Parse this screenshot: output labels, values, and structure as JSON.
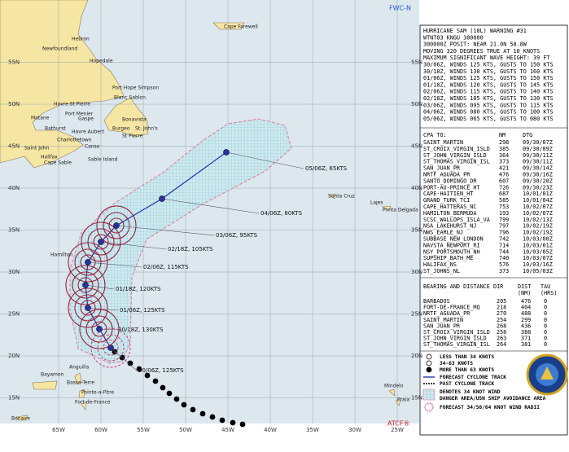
{
  "map": {
    "source_top": "FWC-N",
    "source_bottom": "ATCF®",
    "lat_labels": [
      "55N",
      "50N",
      "45N",
      "40N",
      "35N",
      "30N",
      "25N",
      "20N",
      "15N"
    ],
    "lon_labels": [
      "65W",
      "60W",
      "55W",
      "50W",
      "45W",
      "40W",
      "35W",
      "30W",
      "25W"
    ],
    "places": [
      "Cape Farewell",
      "Hebron",
      "Newfoundland",
      "Hopedale",
      "Port Hope Simpson",
      "Blanc Sablon",
      "Havre St Pierre",
      "Matane",
      "Port Menier",
      "Gaspe",
      "Bathurst",
      "Havre Aubert",
      "Charlottetown",
      "Burgeo",
      "Bonavista",
      "St. John's",
      "St Pierre",
      "Saint John",
      "Halifax",
      "Canso",
      "Cape Sable",
      "Sable Island",
      "Santa Cruz",
      "Lajes",
      "Ponta Delgada",
      "Hamilton",
      "Anguilla",
      "Bayamon",
      "Basse-Terre",
      "Pointe-a-Pitre",
      "Fort-de-France",
      "Bonaire",
      "Mindelo",
      "Praia"
    ],
    "track": [
      {
        "label": "30/06Z, 125KTS"
      },
      {
        "label": "30/18Z, 130KTS"
      },
      {
        "label": "01/06Z, 125KTS"
      },
      {
        "label": "01/18Z, 120KTS"
      },
      {
        "label": "02/06Z, 115KTS"
      },
      {
        "label": "02/18Z, 105KTS"
      },
      {
        "label": "03/06Z, 95KTS"
      },
      {
        "label": "04/06Z, 80KTS"
      },
      {
        "label": "05/06Z, 65KTS"
      }
    ]
  },
  "panel": {
    "header": [
      "HURRICANE SAM (18L) WARNING #31",
      "WTNT03 KNGU 300000",
      "300000Z POSIT: NEAR 21.0N 58.8W",
      "MOVING 320 DEGREES TRUE AT 10 KNOTS",
      "MAXIMUM SIGNIFICANT WAVE HEIGHT: 39 FT",
      "30/06Z, WINDS 125 KTS, GUSTS TO 150 KTS",
      "30/18Z, WINDS 130 KTS, GUSTS TO 160 KTS",
      "01/06Z, WINDS 125 KTS, GUSTS TO 150 KTS",
      "01/18Z, WINDS 120 KTS, GUSTS TO 145 KTS",
      "02/06Z, WINDS 115 KTS, GUSTS TO 140 KTS",
      "02/18Z, WINDS 105 KTS, GUSTS TO 130 KTS",
      "03/06Z, WINDS 095 KTS, GUSTS TO 115 KTS",
      "04/06Z, WINDS 080 KTS, GUSTS TO 100 KTS",
      "05/06Z, WINDS 065 KTS, GUSTS TO 080 KTS"
    ],
    "cpa": {
      "columns": [
        "CPA TO:",
        "NM",
        "DTG"
      ],
      "rows": [
        [
          "SAINT_MARTIN",
          "298",
          "09/30/07Z"
        ],
        [
          "ST_CROIX_VIRGIN_ISLD",
          "385",
          "09/30/09Z"
        ],
        [
          "ST_JOHN_VIRGIN_ISLD",
          "364",
          "09/30/11Z"
        ],
        [
          "ST_THOMAS_VIRGIN_ISL",
          "373",
          "09/30/11Z"
        ],
        [
          "SAN_JUAN_PR",
          "421",
          "09/30/14Z"
        ],
        [
          "NRTF_AGUADA_PR",
          "476",
          "09/30/16Z"
        ],
        [
          "SANTO_DOMINGO_DR",
          "607",
          "09/30/20Z"
        ],
        [
          "PORT-AU-PRINCE_HT",
          "726",
          "09/30/23Z"
        ],
        [
          "CAPE-HAITIEN_HT",
          "687",
          "10/01/01Z"
        ],
        [
          "GRAND_TURK_TCI",
          "585",
          "10/01/04Z"
        ],
        [
          "CAPE_HATTERAS_NC",
          "753",
          "10/02/07Z"
        ],
        [
          "HAMILTON_BERMUDA",
          "193",
          "10/02/07Z"
        ],
        [
          "SCSC_WALLOPS_ISLA_VA",
          "799",
          "10/02/13Z"
        ],
        [
          "NSA_LAKEHURST_NJ",
          "797",
          "10/02/19Z"
        ],
        [
          "NWS_EARLE_NJ",
          "796",
          "10/02/19Z"
        ],
        [
          "SUBBASE_NEW_LONDON",
          "742",
          "10/03/00Z"
        ],
        [
          "NAVSTA_NEWPORT_RI",
          "714",
          "10/03/01Z"
        ],
        [
          "NSY_PORTSMOUTH_NH",
          "744",
          "10/03/05Z"
        ],
        [
          "SUPSHIP_BATH_ME",
          "740",
          "10/03/07Z"
        ],
        [
          "HALIFAX_NS",
          "576",
          "10/03/16Z"
        ],
        [
          "ST_JOHNS_NL",
          "373",
          "10/05/03Z"
        ]
      ]
    },
    "bearing": {
      "columns": [
        "BEARING AND DISTANCE",
        "DIR",
        "DIST",
        "TAU"
      ],
      "units": [
        "(NM)",
        "(HRS)"
      ],
      "rows": [
        [
          "BARBADOS",
          "205",
          "476",
          "0"
        ],
        [
          "FORT-DE-FRANCE_MQ",
          "218",
          "404",
          "0"
        ],
        [
          "NRTF_AGUADA_PR",
          "270",
          "488",
          "0"
        ],
        [
          "SAINT_MARTIN",
          "254",
          "299",
          "0"
        ],
        [
          "SAN_JUAN_PR",
          "268",
          "436",
          "0"
        ],
        [
          "ST_CROIX_VIRGIN_ISLD",
          "258",
          "388",
          "0"
        ],
        [
          "ST_JOHN_VIRGIN_ISLD",
          "263",
          "371",
          "0"
        ],
        [
          "ST_THOMAS_VIRGIN_ISL",
          "264",
          "381",
          "0"
        ]
      ]
    },
    "legend": [
      "LESS THAN 34 KNOTS",
      "34-63 KNOTS",
      "MORE THAN 63 KNOTS",
      "FORECAST CYCLONE TRACK",
      "PAST CYCLONE TRACK",
      "DENOTES 34 KNOT WIND",
      "DANGER AREA/USN SHIP AVOIDANCE AREA",
      "FORECAST 34/50/64 KNOT WIND RADII"
    ]
  }
}
